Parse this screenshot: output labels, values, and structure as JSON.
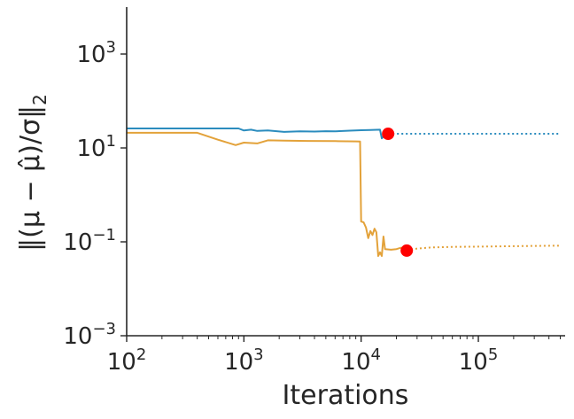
{
  "chart_data": {
    "type": "line",
    "title": "",
    "xlabel": "Iterations",
    "ylabel": "‖(μ − μ̂)/σ‖",
    "ylabel_sub": "2",
    "x_scale": "log",
    "y_scale": "log",
    "xlim": [
      100,
      550000
    ],
    "ylim": [
      0.001,
      10000
    ],
    "xticks": [
      {
        "value": 100,
        "base": "10",
        "exp": "2"
      },
      {
        "value": 1000,
        "base": "10",
        "exp": "3"
      },
      {
        "value": 10000,
        "base": "10",
        "exp": "4"
      },
      {
        "value": 100000,
        "base": "10",
        "exp": "5"
      }
    ],
    "yticks": [
      {
        "value": 0.001,
        "base": "10",
        "exp": "−3"
      },
      {
        "value": 0.1,
        "base": "10",
        "exp": "−1"
      },
      {
        "value": 10,
        "base": "10",
        "exp": "1"
      },
      {
        "value": 1000,
        "base": "10",
        "exp": "3"
      }
    ],
    "grid": false,
    "legend": "none",
    "series": [
      {
        "color": "#2b8cbe",
        "solid": [
          [
            100,
            26
          ],
          [
            300,
            26
          ],
          [
            600,
            26
          ],
          [
            900,
            26
          ],
          [
            1000,
            23.5
          ],
          [
            1150,
            24.5
          ],
          [
            1300,
            23
          ],
          [
            1600,
            23.5
          ],
          [
            2200,
            22
          ],
          [
            3000,
            22.5
          ],
          [
            4000,
            22.3
          ],
          [
            5000,
            22.7
          ],
          [
            6000,
            22.5
          ],
          [
            8000,
            23.3
          ],
          [
            10000,
            23.8
          ],
          [
            12000,
            24
          ],
          [
            14500,
            24.5
          ],
          [
            15000,
            16
          ],
          [
            16000,
            19
          ],
          [
            17000,
            20
          ]
        ],
        "dotted": [
          [
            17000,
            20
          ],
          [
            30000,
            20
          ],
          [
            100000,
            20
          ],
          [
            500000,
            20
          ]
        ],
        "marker": [
          17000,
          20
        ]
      },
      {
        "color": "#e3a23a",
        "solid": [
          [
            100,
            21
          ],
          [
            200,
            21
          ],
          [
            400,
            21
          ],
          [
            600,
            15
          ],
          [
            850,
            11.5
          ],
          [
            1000,
            13
          ],
          [
            1300,
            12.5
          ],
          [
            1600,
            14.5
          ],
          [
            2200,
            14.3
          ],
          [
            3500,
            14.1
          ],
          [
            6000,
            14.0
          ],
          [
            9000,
            13.8
          ],
          [
            9800,
            13.7
          ],
          [
            10000,
            0.27
          ],
          [
            10500,
            0.26
          ],
          [
            11000,
            0.2
          ],
          [
            11500,
            0.12
          ],
          [
            12000,
            0.17
          ],
          [
            12500,
            0.14
          ],
          [
            13000,
            0.19
          ],
          [
            13500,
            0.16
          ],
          [
            14000,
            0.05
          ],
          [
            14500,
            0.06
          ],
          [
            15000,
            0.05
          ],
          [
            15500,
            0.13
          ],
          [
            16000,
            0.07
          ],
          [
            18000,
            0.068
          ],
          [
            20000,
            0.07
          ],
          [
            22000,
            0.075
          ],
          [
            23000,
            0.07
          ],
          [
            24500,
            0.065
          ]
        ],
        "dotted": [
          [
            24500,
            0.065
          ],
          [
            30000,
            0.072
          ],
          [
            40000,
            0.076
          ],
          [
            60000,
            0.078
          ],
          [
            100000,
            0.079
          ],
          [
            200000,
            0.081
          ],
          [
            500000,
            0.083
          ]
        ],
        "marker": [
          24500,
          0.065
        ]
      }
    ],
    "marker_color": "#ff0000"
  }
}
